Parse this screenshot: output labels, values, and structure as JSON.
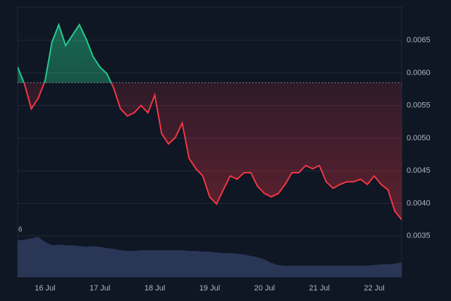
{
  "chart_data": {
    "type": "baseline",
    "categories": [
      null,
      null,
      null,
      null,
      "16 Jul",
      null,
      null,
      null,
      null,
      null,
      null,
      null,
      "17 Jul",
      null,
      null,
      null,
      null,
      null,
      null,
      null,
      "18 Jul",
      null,
      null,
      null,
      null,
      null,
      null,
      null,
      "19 Jul",
      null,
      null,
      null,
      null,
      null,
      null,
      null,
      "20 Jul",
      null,
      null,
      null,
      null,
      null,
      null,
      null,
      "21 Jul",
      null,
      null,
      null,
      null,
      null,
      null,
      null,
      "22 Jul",
      null,
      null,
      null,
      null
    ],
    "values": [
      0.00609,
      0.00583,
      0.00545,
      0.00561,
      0.00588,
      0.00647,
      0.00674,
      0.00642,
      0.00658,
      0.00674,
      0.00652,
      0.00625,
      0.00609,
      0.00599,
      0.00577,
      0.00545,
      0.00534,
      0.00539,
      0.0055,
      0.00539,
      0.00566,
      0.00507,
      0.00491,
      0.00501,
      0.00523,
      0.00469,
      0.00453,
      0.00442,
      0.0041,
      0.00399,
      0.00421,
      0.00442,
      0.00437,
      0.00447,
      0.00447,
      0.00426,
      0.00415,
      0.0041,
      0.00415,
      0.00429,
      0.00447,
      0.00447,
      0.00458,
      0.00453,
      0.00458,
      0.00433,
      0.00423,
      0.00429,
      0.00433,
      0.00433,
      0.00437,
      0.00429,
      0.00442,
      0.00429,
      0.00421,
      0.00388,
      0.00375
    ],
    "baseline": 0.00585,
    "up_color": "#26c98b",
    "down_color": "#f23645",
    "ylim": [
      0.00287,
      0.00701
    ],
    "yticks": [
      0.0035,
      {
        "value": 0.004,
        "label": "0.0040"
      },
      0.0045,
      {
        "value": 0.005,
        "label": "0.0050"
      },
      0.0055,
      {
        "value": 0.006,
        "label": "0.0060"
      },
      0.0065
    ],
    "grid": true,
    "volume_label": "6",
    "volume": [
      52,
      53,
      55,
      57,
      50,
      45,
      46,
      45,
      45,
      44,
      43,
      44,
      43,
      41,
      40,
      38,
      37,
      37,
      38,
      38,
      38,
      38,
      38,
      38,
      38,
      37,
      37,
      36,
      36,
      35,
      34,
      34,
      33,
      32,
      30,
      28,
      25,
      20,
      17,
      16,
      16,
      16,
      16,
      16,
      16,
      16,
      16,
      16,
      16,
      16,
      16,
      16,
      17,
      18,
      18,
      19,
      21
    ],
    "volume_ylim": [
      0,
      100
    ],
    "volume_color": "#2e3a5c"
  }
}
